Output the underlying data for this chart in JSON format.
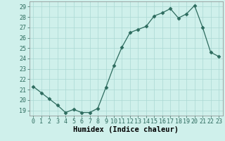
{
  "x": [
    0,
    1,
    2,
    3,
    4,
    5,
    6,
    7,
    8,
    9,
    10,
    11,
    12,
    13,
    14,
    15,
    16,
    17,
    18,
    19,
    20,
    21,
    22,
    23
  ],
  "y": [
    21.3,
    20.7,
    20.1,
    19.5,
    18.8,
    19.1,
    18.8,
    18.8,
    19.2,
    21.2,
    23.3,
    25.1,
    26.5,
    26.8,
    27.1,
    28.1,
    28.4,
    28.8,
    27.9,
    28.3,
    29.1,
    27.0,
    24.6,
    24.2
  ],
  "xlabel": "Humidex (Indice chaleur)",
  "xlim": [
    -0.5,
    23.5
  ],
  "ylim": [
    18.5,
    29.5
  ],
  "yticks": [
    19,
    20,
    21,
    22,
    23,
    24,
    25,
    26,
    27,
    28,
    29
  ],
  "xticks": [
    0,
    1,
    2,
    3,
    4,
    5,
    6,
    7,
    8,
    9,
    10,
    11,
    12,
    13,
    14,
    15,
    16,
    17,
    18,
    19,
    20,
    21,
    22,
    23
  ],
  "line_color": "#2d6b5e",
  "marker": "D",
  "marker_size": 2.5,
  "bg_color": "#cff0eb",
  "grid_color": "#aad8d3",
  "xlabel_fontsize": 7.5,
  "tick_fontsize": 6.0
}
